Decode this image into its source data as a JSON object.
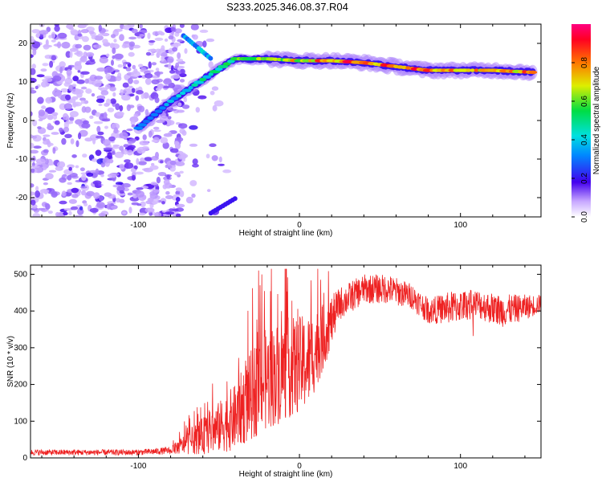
{
  "title": "S233.2025.346.08.37.R04",
  "chart_data": [
    {
      "type": "heatmap",
      "xlabel": "Height of straight line (km)",
      "ylabel": "Frequency (Hz)",
      "xlim": [
        -167,
        150
      ],
      "ylim": [
        -25,
        25
      ],
      "xticks": [
        -100,
        0,
        100
      ],
      "yticks": [
        -20,
        -10,
        0,
        10,
        20
      ],
      "colorbar": {
        "label": "Normalized spectral amplitude",
        "ticks": [
          0.0,
          0.2,
          0.4,
          0.6,
          0.8
        ],
        "range": [
          0.0,
          1.0
        ]
      },
      "ridge": {
        "description_points": [
          {
            "x": -100,
            "y": -2,
            "v": 0.3
          },
          {
            "x": -80,
            "y": 5,
            "v": 0.4
          },
          {
            "x": -55,
            "y": 12,
            "v": 0.5
          },
          {
            "x": -40,
            "y": 16,
            "v": 0.6
          },
          {
            "x": -20,
            "y": 16,
            "v": 0.65
          },
          {
            "x": 0,
            "y": 15.5,
            "v": 0.75
          },
          {
            "x": 20,
            "y": 15.5,
            "v": 0.85
          },
          {
            "x": 40,
            "y": 15,
            "v": 0.9
          },
          {
            "x": 60,
            "y": 14,
            "v": 0.88
          },
          {
            "x": 80,
            "y": 13,
            "v": 0.85
          },
          {
            "x": 100,
            "y": 13,
            "v": 0.82
          },
          {
            "x": 120,
            "y": 13,
            "v": 0.85
          },
          {
            "x": 145,
            "y": 12.5,
            "v": 0.8
          }
        ]
      }
    },
    {
      "type": "line",
      "xlabel": "Height of straight line (km)",
      "ylabel": "SNR (10 * v/v)",
      "xlim": [
        -167,
        150
      ],
      "ylim": [
        0,
        525
      ],
      "xticks": [
        -100,
        0,
        100
      ],
      "yticks": [
        0,
        100,
        200,
        300,
        400,
        500
      ],
      "color": "#ee2222",
      "envelope": [
        {
          "x": -167,
          "y": 15,
          "spread": 8
        },
        {
          "x": -100,
          "y": 15,
          "spread": 8
        },
        {
          "x": -80,
          "y": 20,
          "spread": 10
        },
        {
          "x": -70,
          "y": 40,
          "spread": 30
        },
        {
          "x": -55,
          "y": 70,
          "spread": 60
        },
        {
          "x": -40,
          "y": 110,
          "spread": 90
        },
        {
          "x": -25,
          "y": 200,
          "spread": 140
        },
        {
          "x": -10,
          "y": 240,
          "spread": 140
        },
        {
          "x": 5,
          "y": 260,
          "spread": 130
        },
        {
          "x": 15,
          "y": 330,
          "spread": 90
        },
        {
          "x": 25,
          "y": 420,
          "spread": 45
        },
        {
          "x": 40,
          "y": 460,
          "spread": 40
        },
        {
          "x": 55,
          "y": 460,
          "spread": 40
        },
        {
          "x": 70,
          "y": 440,
          "spread": 35
        },
        {
          "x": 80,
          "y": 400,
          "spread": 35
        },
        {
          "x": 95,
          "y": 410,
          "spread": 45
        },
        {
          "x": 110,
          "y": 420,
          "spread": 40
        },
        {
          "x": 125,
          "y": 400,
          "spread": 45
        },
        {
          "x": 140,
          "y": 410,
          "spread": 35
        },
        {
          "x": 150,
          "y": 420,
          "spread": 25
        }
      ]
    }
  ]
}
